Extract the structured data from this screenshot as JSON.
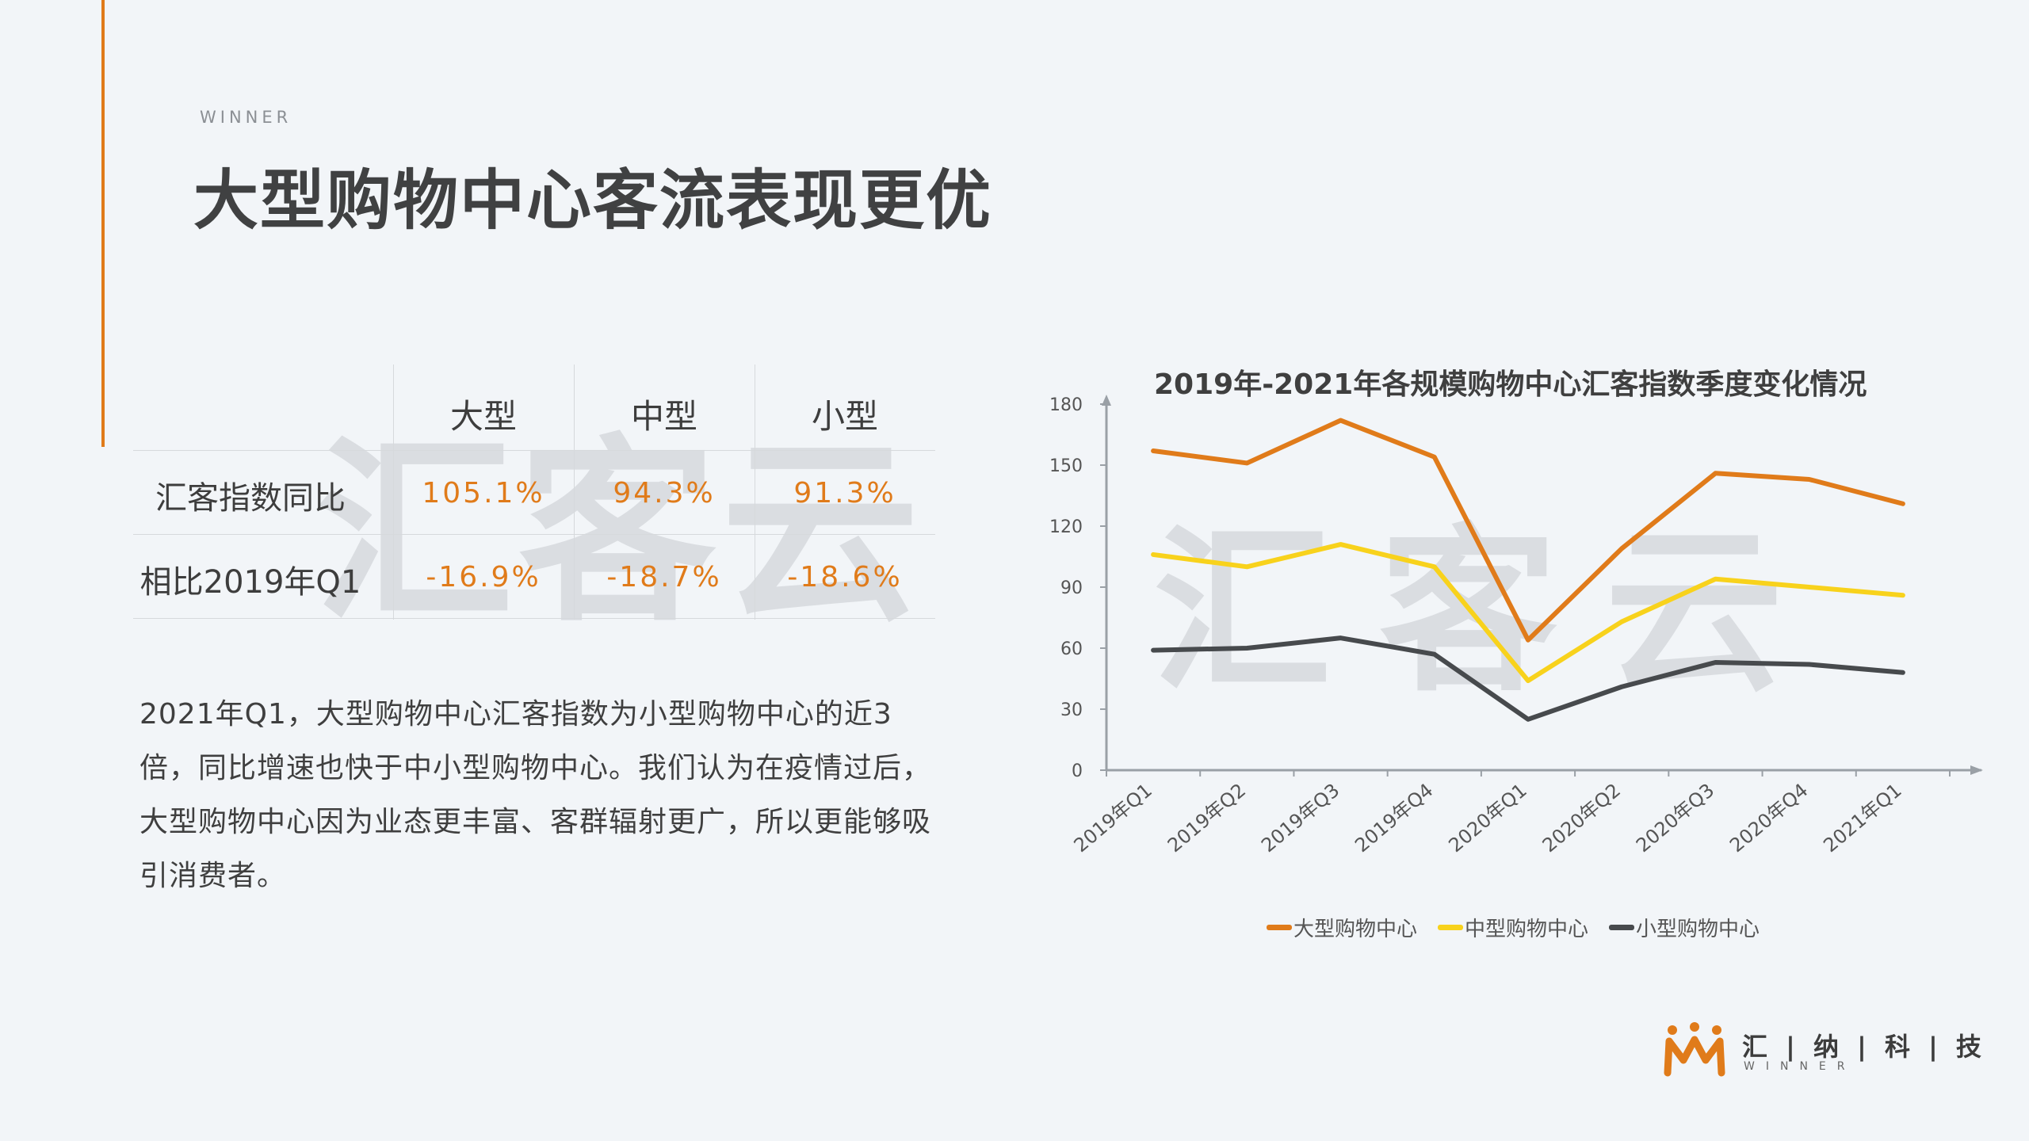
{
  "header": {
    "eyebrow": "WINNER",
    "title": "大型购物中心客流表现更优"
  },
  "table": {
    "watermark": "汇客云",
    "columns": [
      "大型",
      "中型",
      "小型"
    ],
    "rows": [
      {
        "label": "汇客指数同比",
        "values": [
          "105.1%",
          "94.3%",
          "91.3%"
        ]
      },
      {
        "label": "相比2019年Q1",
        "values": [
          "-16.9%",
          "-18.7%",
          "-18.6%"
        ]
      }
    ]
  },
  "body_text": "2021年Q1，大型购物中心汇客指数为小型购物中心的近3倍，同比增速也快于中小型购物中心。我们认为在疫情过后，大型购物中心因为业态更丰富、客群辐射更广，所以更能够吸引消费者。",
  "chart_data": {
    "type": "line",
    "title": "2019年-2021年各规模购物中心汇客指数季度变化情况",
    "watermark": "汇客云",
    "x": [
      "2019年Q1",
      "2019年Q2",
      "2019年Q3",
      "2019年Q4",
      "2020年Q1",
      "2020年Q2",
      "2020年Q3",
      "2020年Q4",
      "2021年Q1"
    ],
    "series": [
      {
        "name": "大型购物中心",
        "color": "#e07b1a",
        "values": [
          157,
          151,
          172,
          154,
          64,
          109,
          146,
          143,
          131
        ]
      },
      {
        "name": "中型购物中心",
        "color": "#f8d21c",
        "values": [
          106,
          100,
          111,
          100,
          44,
          73,
          94,
          90,
          86
        ]
      },
      {
        "name": "小型购物中心",
        "color": "#474a4d",
        "values": [
          59,
          60,
          65,
          57,
          25,
          41,
          53,
          52,
          48
        ]
      }
    ],
    "ylim": [
      0,
      180
    ],
    "yticks": [
      0,
      30,
      60,
      90,
      120,
      150,
      180
    ],
    "xlabel": "",
    "ylabel": "",
    "grid": false,
    "legend": "bottom"
  },
  "logo": {
    "text": "汇 | 纳 | 科 | 技",
    "subtext": "WINNER",
    "color": "#e07b1a"
  }
}
